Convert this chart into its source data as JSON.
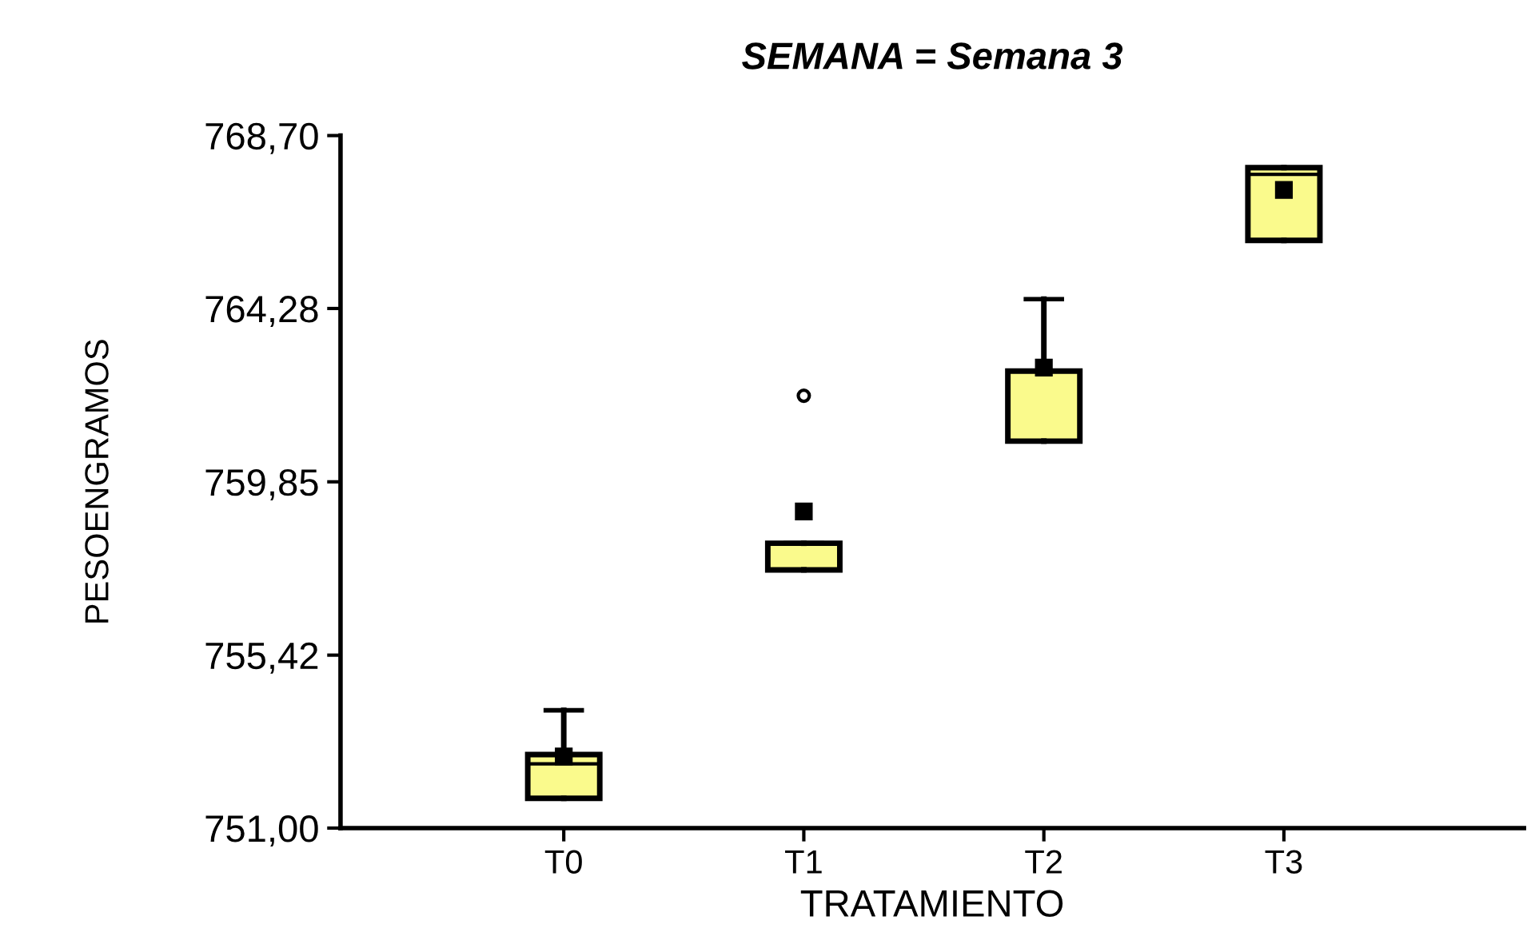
{
  "chart_data": {
    "type": "box",
    "title": "SEMANA = Semana 3",
    "xlabel": "TRATAMIENTO",
    "ylabel": "PESOENGRAMOS",
    "categories": [
      "T0",
      "T1",
      "T2",
      "T3"
    ],
    "boxes": [
      {
        "low": 751.76,
        "q1": 751.76,
        "median": 752.64,
        "q3": 752.88,
        "high": 754.01,
        "mean": 752.83
      },
      {
        "low": 757.6,
        "q1": 757.6,
        "median": 758.28,
        "q3": 758.28,
        "high": 758.28,
        "mean": 759.09,
        "outliers": [
          762.05
        ]
      },
      {
        "low": 760.89,
        "q1": 760.89,
        "median": 762.68,
        "q3": 762.68,
        "high": 764.52,
        "mean": 762.77
      },
      {
        "low": 766.02,
        "q1": 766.02,
        "median": 767.71,
        "q3": 767.88,
        "high": 767.88,
        "mean": 767.31
      }
    ],
    "color": "#fafa8c",
    "ylim": [
      751.0,
      768.7
    ],
    "yticks": [
      {
        "value": 751.0,
        "label": "751,00"
      },
      {
        "value": 755.42,
        "label": "755,42"
      },
      {
        "value": 759.85,
        "label": "759,85"
      },
      {
        "value": 764.28,
        "label": "764,28"
      },
      {
        "value": 768.7,
        "label": "768,70"
      }
    ],
    "grid": false
  }
}
